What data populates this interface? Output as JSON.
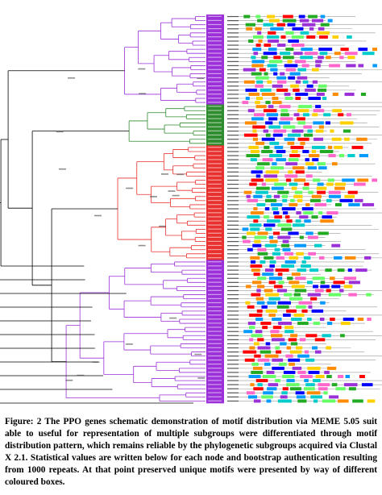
{
  "figure": {
    "description_visible": false,
    "clades": [
      {
        "name": "purple-upper",
        "color": "#9b30d9",
        "leaf_count": 22
      },
      {
        "name": "green",
        "color": "#2e8b2e",
        "leaf_count": 10
      },
      {
        "name": "red",
        "color": "#e8302e",
        "leaf_count": 28
      },
      {
        "name": "purple-lower",
        "color": "#9b30d9",
        "leaf_count": 35
      }
    ],
    "motif_colors": [
      "#ff0000",
      "#00cccc",
      "#ffd000",
      "#9b30d9",
      "#22aa22",
      "#ff66cc",
      "#0000ff",
      "#ff8c00",
      "#66ff66",
      "#0099ff"
    ],
    "tree_line_color": "#000000"
  },
  "caption": {
    "text": "Figure: 2 The PPO genes schematic demonstration of motif distribution via MEME 5.05 suit able to useful for representation of multiple subgroups were differentiated through motif distribution pattern, which remains reliable by the phylogenetic subgroups acquired via Clustal X 2.1. Statistical values are written below for each node and bootstrap authentication resulting from 1000 repeats. At that point preserved unique motifs were presented by way of different coloured boxes."
  }
}
